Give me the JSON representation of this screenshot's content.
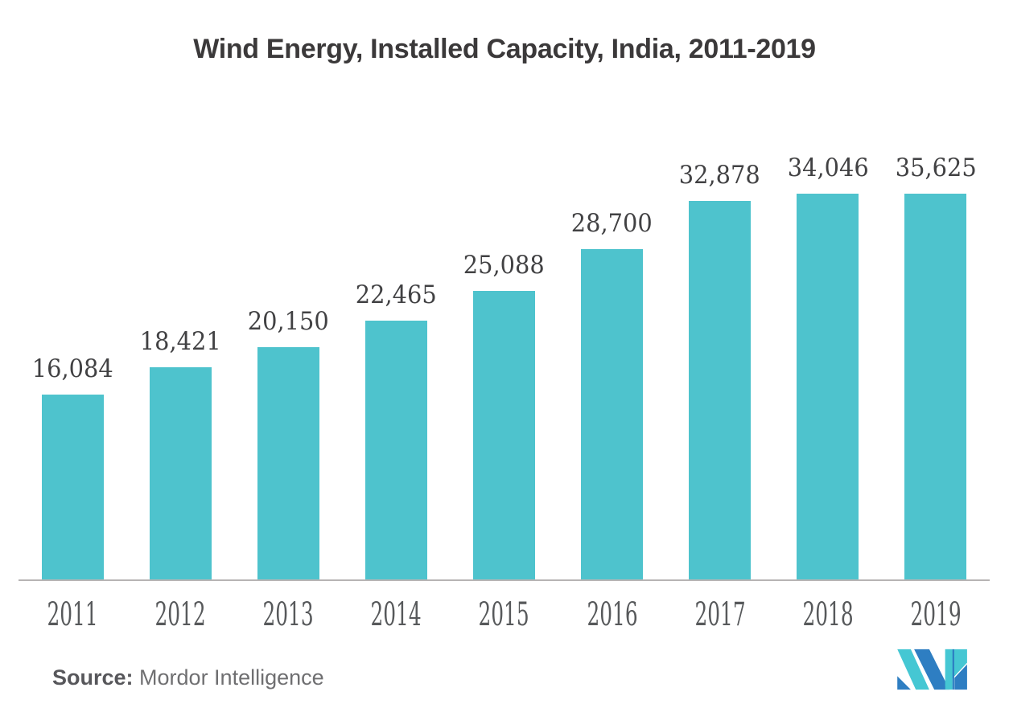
{
  "title": "Wind Energy, Installed Capacity, India, 2011-2019",
  "source": {
    "label": "Source:",
    "name": " Mordor Intelligence"
  },
  "logo": {
    "name": "mordor-intelligence-logo",
    "teal": "#45c7d3",
    "blue": "#2e7ec2"
  },
  "colors": {
    "bar": "#4ec3cd",
    "axis": "#b7b4b4",
    "title_text": "#3b393a",
    "value_label_text": "#414143",
    "tick_text": "#57595b"
  },
  "chart_data": {
    "type": "bar",
    "title": "Wind Energy, Installed Capacity, India, 2011-2019",
    "categories": [
      "2011",
      "2012",
      "2013",
      "2014",
      "2015",
      "2016",
      "2017",
      "2018",
      "2019"
    ],
    "values": [
      16084,
      18421,
      20150,
      22465,
      25088,
      28700,
      32878,
      34046,
      35625
    ],
    "value_labels": [
      "16,084",
      "18,421",
      "20,150",
      "22,465",
      "25,088",
      "28,700",
      "32,878",
      "34,046",
      "35,625"
    ],
    "xlabel": "",
    "ylabel": "",
    "ylim": [
      0,
      37000
    ],
    "grid": false,
    "legend": "none",
    "data_labels": "above-bars",
    "bar_color": "#4ec3cd"
  }
}
